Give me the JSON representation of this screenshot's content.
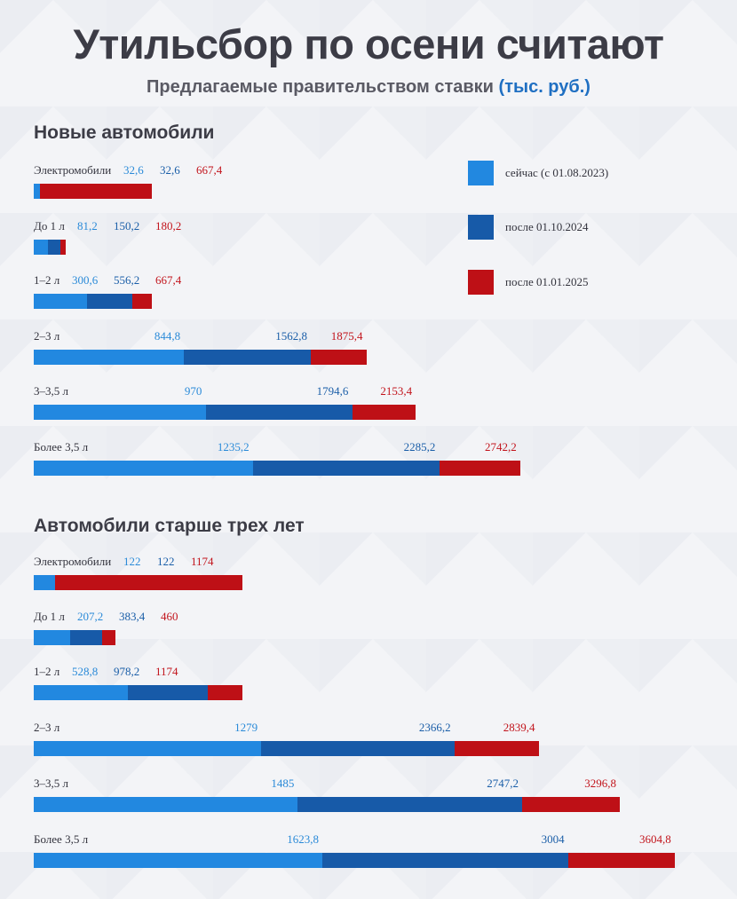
{
  "header": {
    "title": "Утильсбор по осени считают",
    "subtitle_main": "Предлагаемые правительством ставки",
    "subtitle_unit": "(тыс. руб.)"
  },
  "colors": {
    "current": "#2288e0",
    "after_oct_2024": "#175aa8",
    "after_jan_2025": "#be1016"
  },
  "legend": [
    {
      "label": "сейчас (с 01.08.2023)"
    },
    {
      "label": "после 01.10.2024"
    },
    {
      "label": "после 01.01.2025"
    }
  ],
  "chart_data": [
    {
      "type": "bar",
      "title": "Новые автомобили",
      "series_names": [
        "сейчас (с 01.08.2023)",
        "после 01.10.2024",
        "после 01.01.2025"
      ],
      "unit": "тыс. руб.",
      "categories": [
        "Электромобили",
        "До 1 л",
        "1–2 л",
        "2–3 л",
        "3–3,5 л",
        "Более 3,5 л"
      ],
      "value_labels": [
        [
          "32,6",
          "32,6",
          "667,4"
        ],
        [
          "81,2",
          "150,2",
          "180,2"
        ],
        [
          "300,6",
          "556,2",
          "667,4"
        ],
        [
          "844,8",
          "1562,8",
          "1875,4"
        ],
        [
          "970",
          "1794,6",
          "2153,4"
        ],
        [
          "1235,2",
          "2285,2",
          "2742,2"
        ]
      ],
      "values": [
        [
          32.6,
          32.6,
          667.4
        ],
        [
          81.2,
          150.2,
          180.2
        ],
        [
          300.6,
          556.2,
          667.4
        ],
        [
          844.8,
          1562.8,
          1875.4
        ],
        [
          970,
          1794.6,
          2153.4
        ],
        [
          1235.2,
          2285.2,
          2742.2
        ]
      ]
    },
    {
      "type": "bar",
      "title": "Автомобили старше трех лет",
      "series_names": [
        "сейчас (с 01.08.2023)",
        "после 01.10.2024",
        "после 01.01.2025"
      ],
      "unit": "тыс. руб.",
      "categories": [
        "Электромобили",
        "До 1 л",
        "1–2 л",
        "2–3 л",
        "3–3,5 л",
        "Более 3,5 л"
      ],
      "value_labels": [
        [
          "122",
          "122",
          "1174"
        ],
        [
          "207,2",
          "383,4",
          "460"
        ],
        [
          "528,8",
          "978,2",
          "1174"
        ],
        [
          "1279",
          "2366,2",
          "2839,4"
        ],
        [
          "1485",
          "2747,2",
          "3296,8"
        ],
        [
          "1623,8",
          "3004",
          "3604,8"
        ]
      ],
      "values": [
        [
          122,
          122,
          1174
        ],
        [
          207.2,
          383.4,
          460
        ],
        [
          528.8,
          978.2,
          1174
        ],
        [
          1279,
          2366.2,
          2839.4
        ],
        [
          1485,
          2747.2,
          3296.8
        ],
        [
          1623.8,
          3004,
          3604.8
        ]
      ]
    }
  ]
}
